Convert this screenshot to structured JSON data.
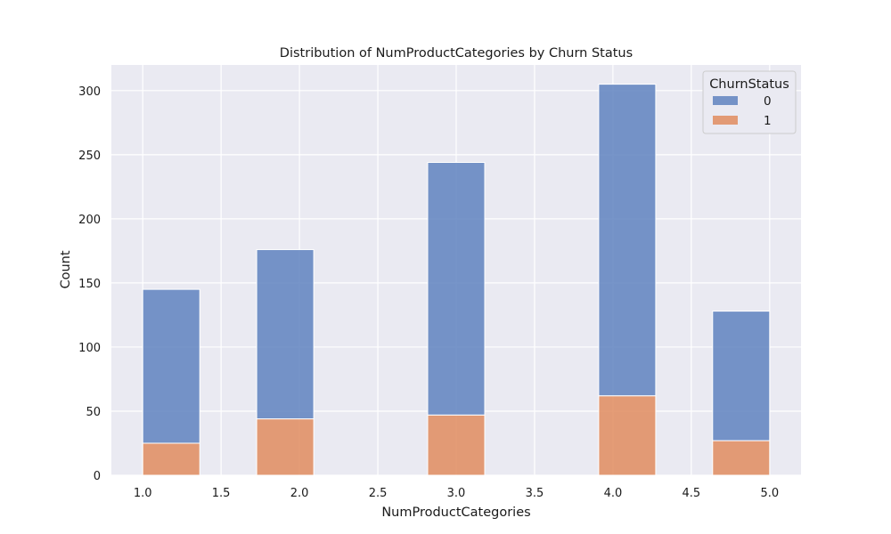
{
  "chart_data": {
    "type": "bar",
    "stacked": true,
    "title": "Distribution of NumProductCategories by Churn Status",
    "xlabel": "NumProductCategories",
    "ylabel": "Count",
    "xlim": [
      0.8,
      5.2
    ],
    "ylim": [
      0,
      320
    ],
    "x_ticks": [
      "1.0",
      "1.5",
      "2.0",
      "2.5",
      "3.0",
      "3.5",
      "4.0",
      "4.5",
      "5.0"
    ],
    "y_ticks": [
      "0",
      "50",
      "100",
      "150",
      "200",
      "250",
      "300"
    ],
    "bins": [
      {
        "start": 1.0,
        "end": 1.364
      },
      {
        "start": 1.727,
        "end": 2.091
      },
      {
        "start": 2.818,
        "end": 3.182
      },
      {
        "start": 3.909,
        "end": 4.273
      },
      {
        "start": 4.636,
        "end": 5.0
      }
    ],
    "series": [
      {
        "name": "0",
        "color": "#5f82c0",
        "values": [
          120,
          132,
          197,
          243,
          101
        ]
      },
      {
        "name": "1",
        "color": "#e08c5f",
        "values": [
          25,
          44,
          47,
          62,
          27
        ]
      }
    ],
    "legend": {
      "title": "ChurnStatus",
      "position": "top-right"
    },
    "grid": true,
    "background": "#eaeaf2"
  }
}
